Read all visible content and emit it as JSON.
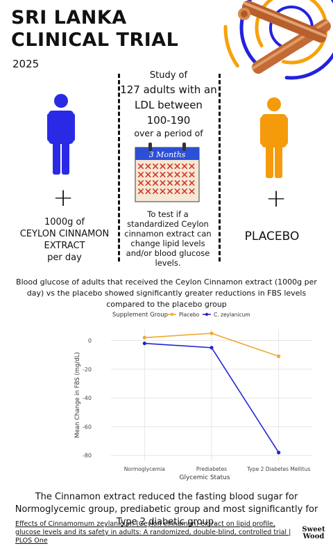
{
  "header": {
    "title_line1": "SRI LANKA",
    "title_line2": "CLINICAL TRIAL",
    "year": "2025"
  },
  "study": {
    "line1": "Study of",
    "line2": "127 adults with an",
    "line3": "LDL between",
    "line4": "100-190",
    "line5": "over a period of",
    "calendar_label": "3 Months",
    "test_description": "To test if a standardized Ceylon cinnamon extract can change lipid levels and/or blood glucose levels."
  },
  "groups": {
    "treatment": {
      "line1": "1000g of",
      "line2": "CEYLON CINNAMON",
      "line3": "EXTRACT",
      "line4": "per day",
      "color": "#2a2ae6"
    },
    "placebo": {
      "label": "PLACEBO",
      "color": "#f59a0a"
    },
    "plus_symbol": "+"
  },
  "summary": "Blood glucose of adults that received the Ceylon Cinnamon extract (1000g per day) vs the placebo showed significantly greater reductions in FBS levels compared to the placebo group",
  "chart_data": {
    "type": "line",
    "legend_title": "Supplement Group",
    "legend_position": "top",
    "categories": [
      "Normoglycemia",
      "Prediabetes",
      "Type 2 Diabetes Mellitus"
    ],
    "series": [
      {
        "name": "Placebo",
        "values": [
          2,
          5,
          -11
        ],
        "color": "#f0a932"
      },
      {
        "name": "C. zeylanicum",
        "values": [
          -2,
          -5,
          -78
        ],
        "color": "#2323d4"
      }
    ],
    "xlabel": "Glycemic Status",
    "ylabel": "Mean Change in FBS (mg/dL)",
    "yticks": [
      0,
      -20,
      -40,
      -60,
      -80
    ],
    "ylim": [
      -84,
      8
    ],
    "grid": true
  },
  "conclusion": "The Cinnamon extract reduced the fasting blood sugar for Normoglycemic group, prediabetic group and most significantly for Type 2 diabetic group.",
  "citation": "Effects of Cinnamomum zeylanicum (Ceylon cinnamon) extract on lipid profile, glucose levels and its safety in adults: A randomized, double-blind, controlled trial | PLOS One",
  "logo": {
    "line1": "Sweet",
    "line2": "Wood"
  }
}
